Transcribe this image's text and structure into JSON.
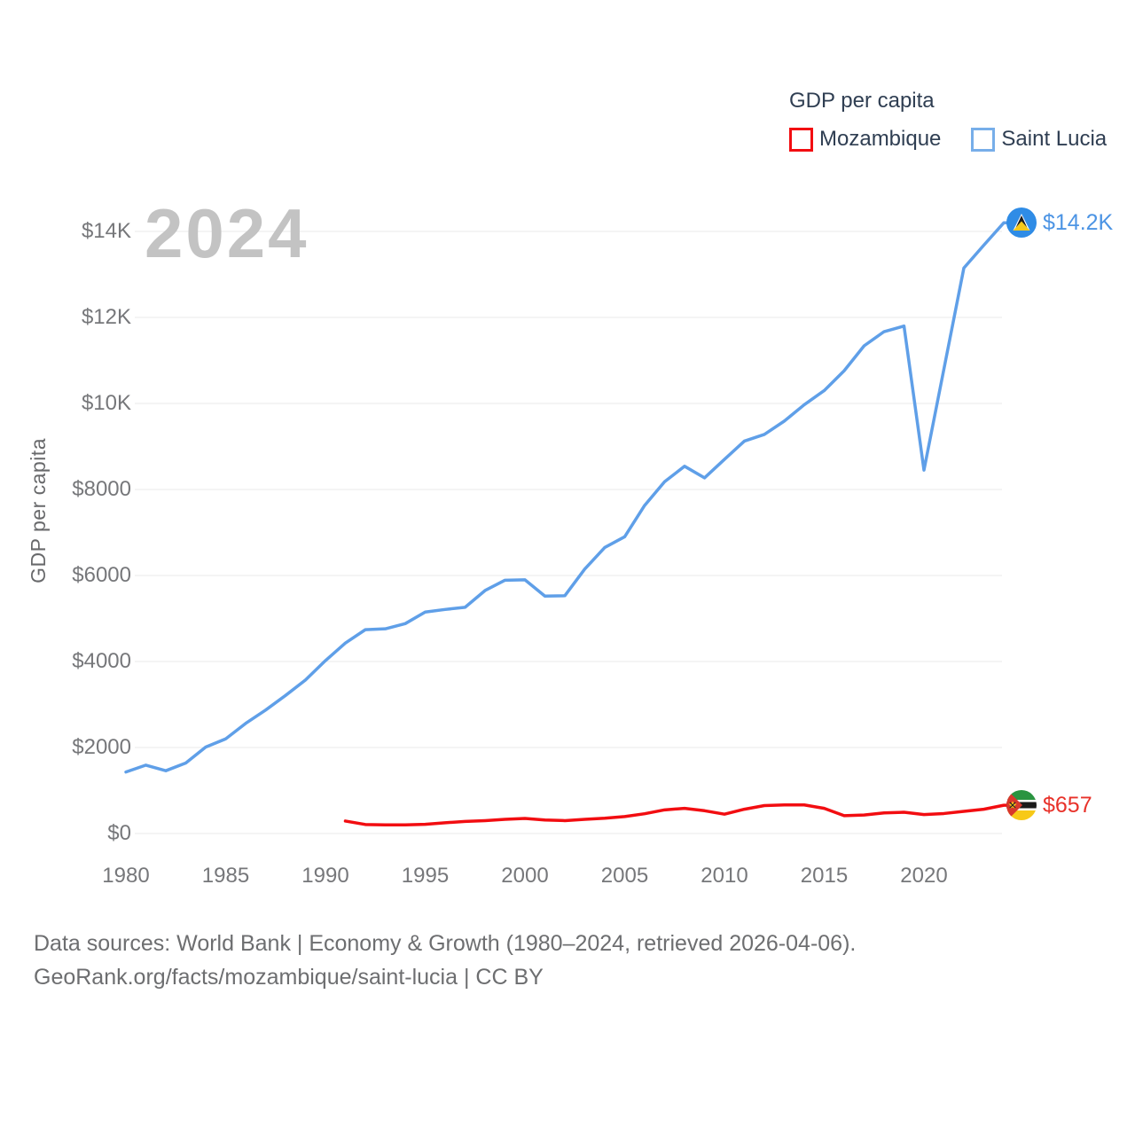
{
  "watermark": "2024",
  "legend": {
    "title": "GDP per capita",
    "items": [
      {
        "label": "Mozambique",
        "color": "#f20d11"
      },
      {
        "label": "Saint Lucia",
        "color": "#77aee9"
      }
    ]
  },
  "axis": {
    "y_title": "GDP per capita"
  },
  "end_labels": {
    "saint_lucia": "$14.2K",
    "mozambique": "$657"
  },
  "footer": {
    "line1": "Data sources: World Bank | Economy & Growth (1980–2024, retrieved 2026-04-06).",
    "line2": "GeoRank.org/facts/mozambique/saint-lucia | CC BY"
  },
  "chart_data": {
    "type": "line",
    "title": "GDP per capita",
    "xlabel": "",
    "ylabel": "GDP per capita",
    "xlim": [
      1980,
      2024
    ],
    "ylim": [
      0,
      14600
    ],
    "grid": "horizontal",
    "legend_position": "top-right",
    "y_ticks": [
      {
        "value": 0,
        "label": "$0"
      },
      {
        "value": 2000,
        "label": "$2000"
      },
      {
        "value": 4000,
        "label": "$4000"
      },
      {
        "value": 6000,
        "label": "$6000"
      },
      {
        "value": 8000,
        "label": "$8000"
      },
      {
        "value": 10000,
        "label": "$10K"
      },
      {
        "value": 12000,
        "label": "$12K"
      },
      {
        "value": 14000,
        "label": "$14K"
      }
    ],
    "x_ticks": [
      1980,
      1985,
      1990,
      1995,
      2000,
      2005,
      2010,
      2015,
      2020
    ],
    "series": [
      {
        "name": "Mozambique",
        "color": "#f20d11",
        "x": [
          1991,
          1992,
          1993,
          1994,
          1995,
          1996,
          1997,
          1998,
          1999,
          2000,
          2001,
          2002,
          2003,
          2004,
          2005,
          2006,
          2007,
          2008,
          2009,
          2010,
          2011,
          2012,
          2013,
          2014,
          2015,
          2016,
          2017,
          2018,
          2019,
          2020,
          2021,
          2022,
          2023,
          2024
        ],
        "values": [
          290,
          210,
          200,
          200,
          215,
          250,
          280,
          300,
          330,
          350,
          315,
          300,
          330,
          355,
          395,
          460,
          550,
          585,
          530,
          450,
          565,
          650,
          665,
          665,
          585,
          415,
          430,
          480,
          495,
          440,
          465,
          515,
          565,
          657
        ]
      },
      {
        "name": "Saint Lucia",
        "color": "#5f9fe8",
        "x": [
          1980,
          1981,
          1982,
          1983,
          1984,
          1985,
          1986,
          1987,
          1988,
          1989,
          1990,
          1991,
          1992,
          1993,
          1994,
          1995,
          1996,
          1997,
          1998,
          1999,
          2000,
          2001,
          2002,
          2003,
          2004,
          2005,
          2006,
          2007,
          2008,
          2009,
          2010,
          2011,
          2012,
          2013,
          2014,
          2015,
          2016,
          2017,
          2018,
          2019,
          2020,
          2021,
          2022,
          2023,
          2024
        ],
        "values": [
          1430,
          1590,
          1460,
          1640,
          2010,
          2200,
          2560,
          2870,
          3210,
          3570,
          4020,
          4430,
          4740,
          4760,
          4880,
          5150,
          5210,
          5260,
          5650,
          5890,
          5900,
          5520,
          5530,
          6150,
          6650,
          6900,
          7630,
          8180,
          8540,
          8270,
          8700,
          9125,
          9280,
          9590,
          9970,
          10300,
          10760,
          11340,
          11670,
          11800,
          8450,
          10800,
          13150,
          13680,
          14200
        ]
      }
    ]
  }
}
